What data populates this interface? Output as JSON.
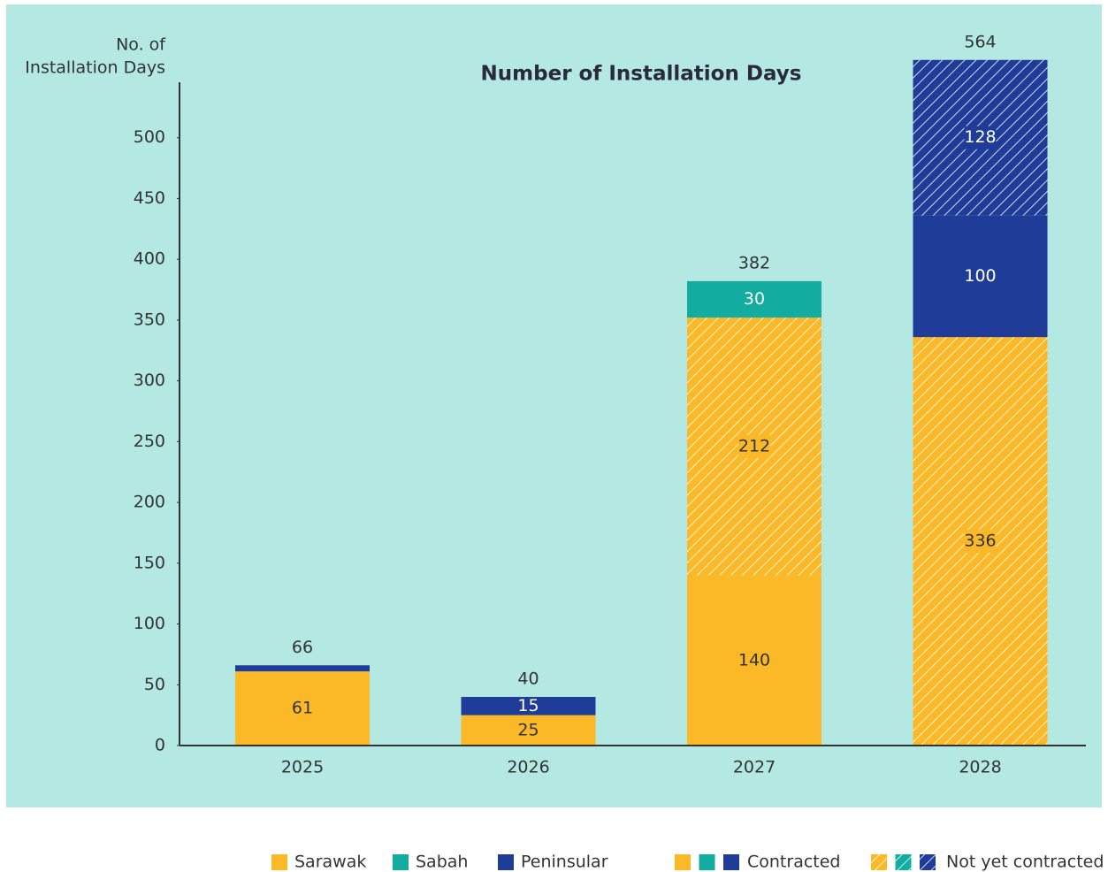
{
  "chart_data": {
    "type": "stacked_bar",
    "title": "Number of Installation Days",
    "y_label": [
      "No. of",
      "Installation Days"
    ],
    "categories": [
      "2025",
      "2026",
      "2027",
      "2028"
    ],
    "status_labels": {
      "contracted": "Contracted",
      "not_yet_contracted": "Not yet contracted"
    },
    "series": [
      {
        "name": "Sarawak",
        "color": "#fbb827",
        "contracted": [
          61,
          25,
          140,
          null
        ],
        "not_yet_contracted": [
          null,
          null,
          212,
          336
        ]
      },
      {
        "name": "Sabah",
        "color": "#12ada0",
        "contracted": [
          null,
          null,
          30,
          null
        ],
        "not_yet_contracted": [
          null,
          null,
          null,
          null
        ]
      },
      {
        "name": "Peninsular",
        "color": "#1f3c98",
        "contracted": [
          5,
          15,
          null,
          100
        ],
        "not_yet_contracted": [
          null,
          null,
          null,
          128
        ]
      }
    ],
    "totals": [
      66,
      40,
      382,
      564
    ],
    "ylim": [
      0,
      550
    ],
    "yticks": [
      0,
      50,
      100,
      150,
      200,
      250,
      300,
      350,
      400,
      450,
      500
    ]
  }
}
